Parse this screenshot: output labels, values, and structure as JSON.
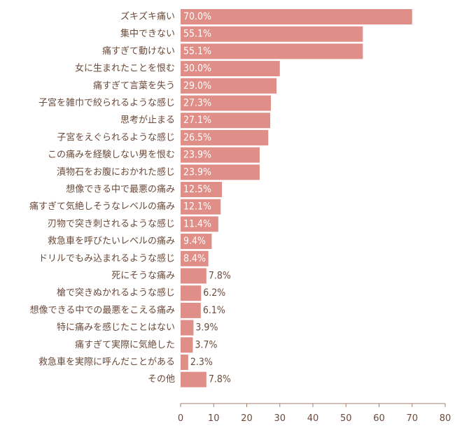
{
  "chart_data": {
    "type": "bar",
    "orientation": "horizontal",
    "title": "",
    "xlabel": "",
    "ylabel": "",
    "xlim": [
      0,
      80
    ],
    "xticks": [
      0,
      10,
      20,
      30,
      40,
      50,
      60,
      70,
      80
    ],
    "grid": false,
    "legend": "none",
    "bar_color": "#e08f88",
    "label_color": "#6b4a3a",
    "categories": [
      "ズキズキ痛い",
      "集中できない",
      "痛すぎて動けない",
      "女に生まれたことを恨む",
      "痛すぎて言葉を失う",
      "子宮を雑巾で絞られるような感じ",
      "思考が止まる",
      "子宮をえぐられるような感じ",
      "この痛みを経験しない男を恨む",
      "漬物石をお腹におかれた感じ",
      "想像できる中で最悪の痛み",
      "痛すぎて気絶しそうなレベルの痛み",
      "刃物で突き刺されるような感じ",
      "救急車を呼びたいレベルの痛み",
      "ドリルでもみ込まれるような感じ",
      "死にそうな痛み",
      "槍で突きぬかれるような感じ",
      "想像できる中での最悪をこえる痛み",
      "特に痛みを感じたことはない",
      "痛すぎて実際に気絶した",
      "救急車を実際に呼んだことがある",
      "その他"
    ],
    "values": [
      70.0,
      55.1,
      55.1,
      30.0,
      29.0,
      27.3,
      27.1,
      26.5,
      23.9,
      23.9,
      12.5,
      12.1,
      11.4,
      9.4,
      8.4,
      7.8,
      6.2,
      6.1,
      3.9,
      3.7,
      2.3,
      7.8
    ],
    "value_labels": [
      "70.0%",
      "55.1%",
      "55.1%",
      "30.0%",
      "29.0%",
      "27.3%",
      "27.1%",
      "26.5%",
      "23.9%",
      "23.9%",
      "12.5%",
      "12.1%",
      "11.4%",
      "9.4%",
      "8.4%",
      "7.8%",
      "6.2%",
      "6.1%",
      "3.9%",
      "3.7%",
      "2.3%",
      "7.8%"
    ]
  }
}
